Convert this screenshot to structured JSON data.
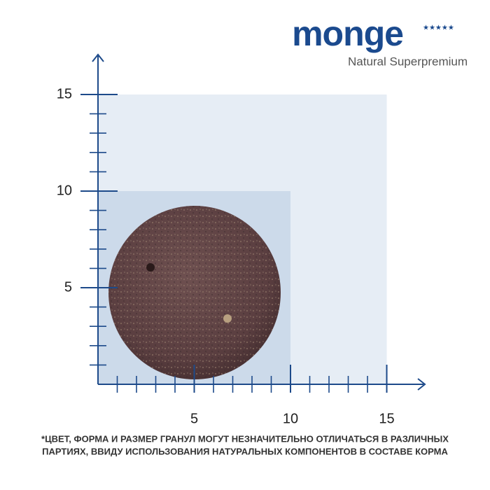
{
  "header": {
    "brand": "monge",
    "tagline": "Natural Superpremium"
  },
  "scale": {
    "x_ticks": [
      5,
      10,
      15
    ],
    "y_ticks": [
      5,
      10,
      15
    ]
  },
  "note": {
    "lines": [
      "*ЦВЕТ, ФОРМА И РАЗМЕР ГРАНУЛ МОГУТ НЕЗНАЧИТЕЛЬНО ОТЛИЧАТЬСЯ  В РАЗЛИЧНЫХ",
      "ПАРТИЯХ, ВВИДУ ИСПОЛЬЗОВАНИЯ НАТУРАЛЬНЫХ КОМПОНЕНТОВ В СОСТАВЕ  КОРМА"
    ]
  }
}
